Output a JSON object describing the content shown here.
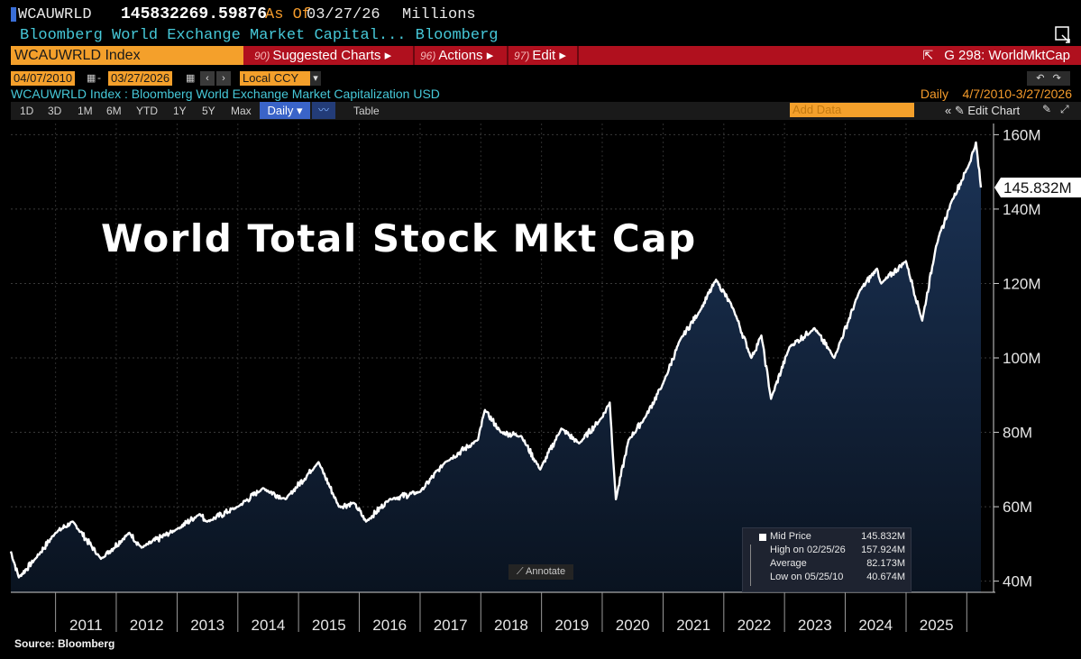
{
  "header": {
    "ticker": "WCAUWRLD",
    "last_value": "145832269.59876",
    "as_of_label": "As Of",
    "as_of_date": "03/27/26",
    "units": "Millions",
    "description": "Bloomberg World Exchange Market Capital...  Bloomberg"
  },
  "toolbar": {
    "security": "WCAUWRLD Index",
    "suggested_num": "90)",
    "suggested": "Suggested Charts ▸",
    "actions_num": "96)",
    "actions": "Actions ▸",
    "edit_num": "97)",
    "edit": "Edit ▸",
    "chart_id": "G 298: WorldMktCap"
  },
  "dates": {
    "start": "04/07/2010",
    "end": "03/27/2026",
    "currency": "Local CCY"
  },
  "subtitle": "WCAUWRLD Index : Bloomberg World Exchange Market Capitalization USD",
  "frequency_label": "Daily",
  "date_range": "4/7/2010-3/27/2026",
  "range_buttons": [
    "1D",
    "3D",
    "1M",
    "6M",
    "YTD",
    "1Y",
    "5Y",
    "Max"
  ],
  "period_button": "Daily ▾",
  "table_button": "Table",
  "add_data": "Add Data",
  "edit_chart": "« ✎ Edit Chart",
  "annotate": "Annotate",
  "source": "Source: Bloomberg",
  "legend": {
    "rows": [
      {
        "label": "Mid Price",
        "value": "145.832M"
      },
      {
        "label": "High on 02/25/26",
        "value": "157.924M"
      },
      {
        "label": "Average",
        "value": "82.173M"
      },
      {
        "label": "Low on 05/25/10",
        "value": "40.674M"
      }
    ]
  },
  "colors": {
    "accent_orange": "#f4a02b",
    "toolbar_red": "#b0101e",
    "cyan_text": "#46c8d8",
    "area_top": "#1b3356",
    "area_bottom": "#0a1320",
    "line": "#ffffff"
  },
  "chart_data": {
    "type": "area",
    "title": "World Total Stock Mkt Cap",
    "frequency": "daily",
    "x_tick_labels": [
      "2011",
      "2012",
      "2013",
      "2014",
      "2015",
      "2016",
      "2017",
      "2018",
      "2019",
      "2020",
      "2021",
      "2022",
      "2023",
      "2024",
      "2025"
    ],
    "y_tick_labels": [
      "40M",
      "60M",
      "80M",
      "100M",
      "120M",
      "140M",
      "160M"
    ],
    "ylim": [
      37,
      163
    ],
    "last_label": "145.832M",
    "series": [
      {
        "unit": "millions (value in M)",
        "x": [
          "2010-04-07",
          "2010-05-25",
          "2010-09-01",
          "2011-01-01",
          "2011-04-15",
          "2011-10-01",
          "2012-03-20",
          "2012-06-01",
          "2013-01-01",
          "2013-05-15",
          "2013-07-01",
          "2014-01-01",
          "2014-06-01",
          "2014-10-15",
          "2015-05-01",
          "2015-09-01",
          "2015-12-01",
          "2016-02-11",
          "2016-07-01",
          "2017-01-01",
          "2017-06-01",
          "2017-12-15",
          "2018-01-26",
          "2018-05-01",
          "2018-09-01",
          "2018-12-24",
          "2019-04-30",
          "2019-08-15",
          "2019-12-31",
          "2020-02-15",
          "2020-03-23",
          "2020-06-08",
          "2020-09-15",
          "2020-12-31",
          "2021-04-15",
          "2021-08-15",
          "2021-11-16",
          "2022-03-01",
          "2022-06-15",
          "2022-08-15",
          "2022-10-12",
          "2023-02-01",
          "2023-06-30",
          "2023-10-27",
          "2024-03-28",
          "2024-07-10",
          "2024-08-05",
          "2024-12-31",
          "2025-04-08",
          "2025-06-30",
          "2025-10-01",
          "2026-01-15",
          "2026-02-25",
          "2026-03-27"
        ],
        "values": [
          48,
          41,
          46,
          53,
          56,
          46,
          53,
          49,
          54,
          58,
          56,
          60,
          65,
          62,
          72,
          60,
          61,
          56,
          62,
          64,
          72,
          78,
          86,
          80,
          79,
          70,
          81,
          77,
          84,
          88,
          62,
          78,
          84,
          93,
          105,
          113,
          121,
          113,
          100,
          106,
          89,
          103,
          108,
          100,
          118,
          124,
          120,
          126,
          110,
          130,
          142,
          152,
          157.9,
          145.8
        ]
      }
    ]
  }
}
